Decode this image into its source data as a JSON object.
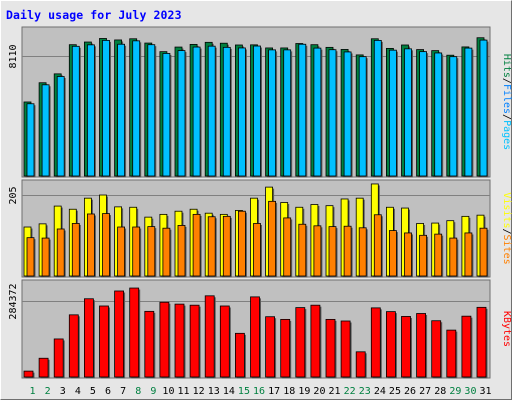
{
  "title": "Daily usage for July 2023",
  "chart_data": [
    {
      "type": "bar",
      "panel": "hits-files-pages",
      "y_tick_label": "8110",
      "y_tick_value": 8110,
      "ylim": [
        0,
        10065
      ],
      "legend_labels": [
        "Pages",
        "Files",
        "Hits"
      ],
      "legend_separator": "/",
      "legend_colors": {
        "Pages": "#00c0ff",
        "Files": "#0080ff",
        "Hits": "#008040"
      },
      "categories": [
        "1",
        "2",
        "3",
        "4",
        "5",
        "6",
        "7",
        "8",
        "9",
        "10",
        "11",
        "12",
        "13",
        "14",
        "15",
        "16",
        "17",
        "18",
        "19",
        "20",
        "21",
        "22",
        "23",
        "24",
        "25",
        "26",
        "27",
        "28",
        "29",
        "30",
        "31"
      ],
      "series": [
        {
          "name": "Hits",
          "color": "#008040",
          "values": [
            5000,
            6300,
            6900,
            8870,
            9050,
            9290,
            9190,
            9270,
            8980,
            8400,
            8710,
            8890,
            9030,
            8970,
            8850,
            8860,
            8650,
            8650,
            8950,
            8870,
            8690,
            8550,
            8180,
            9270,
            8620,
            8850,
            8540,
            8470,
            8160,
            8720,
            9340
          ]
        },
        {
          "name": "Pages",
          "color": "#00c0ff",
          "values": [
            4880,
            6160,
            6720,
            8760,
            8860,
            9160,
            8900,
            9130,
            8870,
            8280,
            8470,
            8710,
            8770,
            8690,
            8650,
            8780,
            8520,
            8520,
            8900,
            8640,
            8530,
            8380,
            8060,
            9160,
            8500,
            8590,
            8400,
            8310,
            8060,
            8640,
            9180
          ]
        }
      ]
    },
    {
      "type": "bar",
      "panel": "visits-sites",
      "y_tick_label": "205",
      "y_tick_value": 205,
      "ylim": [
        0,
        243
      ],
      "legend_labels": [
        "Sites",
        "Visits"
      ],
      "legend_separator": "/",
      "legend_colors": {
        "Sites": "#ff8000",
        "Visits": "#ffff00"
      },
      "categories": [
        "1",
        "2",
        "3",
        "4",
        "5",
        "6",
        "7",
        "8",
        "9",
        "10",
        "11",
        "12",
        "13",
        "14",
        "15",
        "16",
        "17",
        "18",
        "19",
        "20",
        "21",
        "22",
        "23",
        "24",
        "25",
        "26",
        "27",
        "28",
        "29",
        "30",
        "31"
      ],
      "series": [
        {
          "name": "Visits",
          "color": "#ffff00",
          "values": [
            124,
            132,
            177,
            169,
            197,
            205,
            175,
            174,
            149,
            156,
            164,
            169,
            159,
            156,
            166,
            197,
            225,
            186,
            174,
            181,
            178,
            195,
            197,
            233,
            174,
            172,
            133,
            134,
            140,
            151,
            154
          ]
        },
        {
          "name": "Sites",
          "color": "#ff8000",
          "values": [
            97,
            96,
            119,
            133,
            157,
            158,
            124,
            124,
            125,
            121,
            128,
            156,
            150,
            151,
            164,
            133,
            189,
            147,
            131,
            127,
            125,
            126,
            122,
            155,
            115,
            109,
            103,
            106,
            96,
            109,
            121
          ]
        }
      ]
    },
    {
      "type": "bar",
      "panel": "kbytes",
      "y_tick_label": "284372",
      "y_tick_value": 284372,
      "ylim": [
        0,
        362000
      ],
      "legend_labels": [
        "KBytes"
      ],
      "legend_colors": {
        "KBytes": "#ff0000"
      },
      "categories": [
        "1",
        "2",
        "3",
        "4",
        "5",
        "6",
        "7",
        "8",
        "9",
        "10",
        "11",
        "12",
        "13",
        "14",
        "15",
        "16",
        "17",
        "18",
        "19",
        "20",
        "21",
        "22",
        "23",
        "24",
        "25",
        "26",
        "27",
        "28",
        "29",
        "30",
        "31"
      ],
      "series": [
        {
          "name": "KBytes",
          "color": "#ff0000",
          "values": [
            22000,
            70000,
            142000,
            232000,
            292000,
            265000,
            321000,
            332000,
            245000,
            279000,
            272000,
            268000,
            303000,
            265000,
            163000,
            299000,
            225000,
            215000,
            259000,
            268000,
            215000,
            209000,
            94000,
            258000,
            244000,
            226000,
            237000,
            210000,
            175000,
            227000,
            260000
          ]
        }
      ]
    }
  ],
  "x_axis": {
    "labels": [
      "1",
      "2",
      "3",
      "4",
      "5",
      "6",
      "7",
      "8",
      "9",
      "10",
      "11",
      "12",
      "13",
      "14",
      "15",
      "16",
      "17",
      "18",
      "19",
      "20",
      "21",
      "22",
      "23",
      "24",
      "25",
      "26",
      "27",
      "28",
      "29",
      "30",
      "31"
    ],
    "weekend_days": [
      1,
      2,
      8,
      9,
      15,
      16,
      22,
      23,
      29,
      30
    ],
    "weekday_color": "#000000",
    "weekend_color": "#008040"
  }
}
